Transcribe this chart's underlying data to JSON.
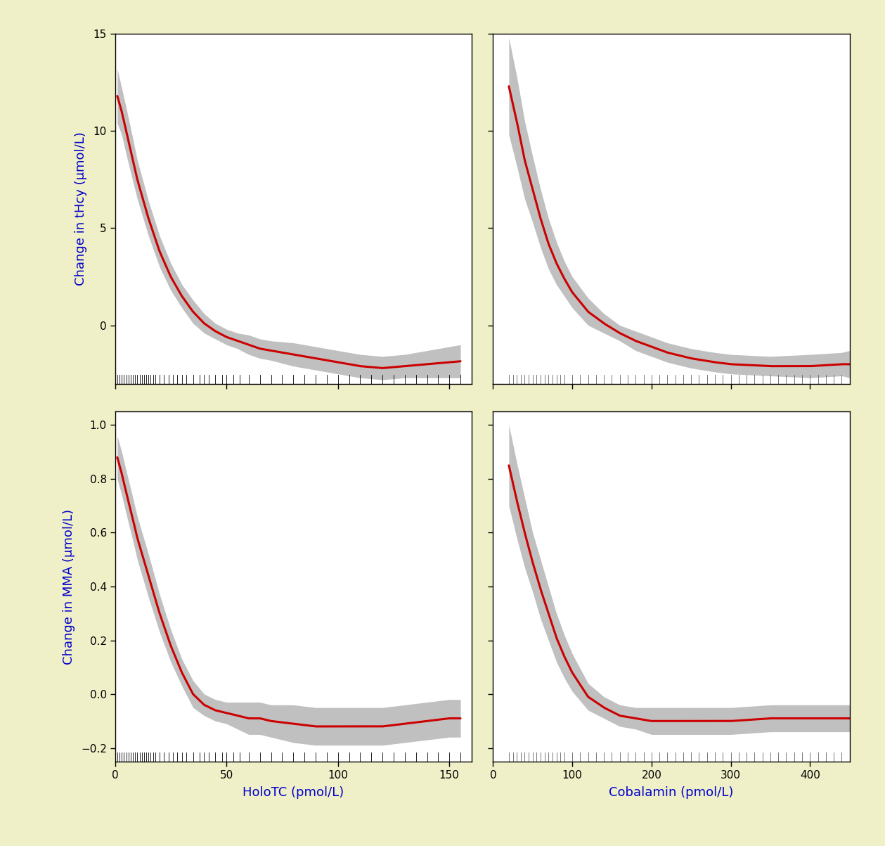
{
  "background_color": "#f0f0c8",
  "panel_bg": "#ffffff",
  "line_color": "#cc0000",
  "band_color": "#c0c0c0",
  "label_color": "#0000cc",
  "tick_color": "#000000",
  "rug_color_left": "#000000",
  "rug_color_right": "#606060",
  "panels": [
    {
      "row": 0,
      "col": 0,
      "xlabel": "",
      "ylabel": "Change in tHcy (μmol/L)",
      "xlim": [
        0,
        160
      ],
      "ylim": [
        -3,
        15
      ],
      "yticks": [
        0,
        5,
        10,
        15
      ],
      "xticks": [
        0,
        50,
        100,
        150
      ],
      "show_xticklabels": false,
      "show_yticklabels": true,
      "curve_x": [
        1,
        3,
        5,
        8,
        10,
        15,
        20,
        25,
        30,
        35,
        40,
        45,
        50,
        55,
        60,
        65,
        70,
        80,
        90,
        100,
        110,
        120,
        130,
        140,
        150,
        155
      ],
      "curve_y": [
        11.8,
        11.0,
        10.0,
        8.5,
        7.5,
        5.5,
        3.8,
        2.5,
        1.5,
        0.7,
        0.1,
        -0.3,
        -0.6,
        -0.8,
        -1.0,
        -1.2,
        -1.3,
        -1.5,
        -1.7,
        -1.9,
        -2.1,
        -2.2,
        -2.1,
        -2.0,
        -1.9,
        -1.85
      ],
      "upper_y": [
        13.2,
        12.2,
        11.2,
        9.6,
        8.5,
        6.4,
        4.6,
        3.2,
        2.1,
        1.3,
        0.6,
        0.1,
        -0.2,
        -0.4,
        -0.5,
        -0.7,
        -0.8,
        -0.9,
        -1.1,
        -1.3,
        -1.5,
        -1.6,
        -1.5,
        -1.3,
        -1.1,
        -1.0
      ],
      "lower_y": [
        10.4,
        9.8,
        8.8,
        7.4,
        6.5,
        4.6,
        3.0,
        1.8,
        0.9,
        0.1,
        -0.4,
        -0.7,
        -1.0,
        -1.2,
        -1.5,
        -1.7,
        -1.8,
        -2.1,
        -2.3,
        -2.5,
        -2.7,
        -2.8,
        -2.7,
        -2.7,
        -2.7,
        -2.7
      ],
      "rug": [
        1,
        2,
        3,
        4,
        5,
        6,
        7,
        8,
        9,
        10,
        11,
        12,
        13,
        14,
        15,
        16,
        17,
        18,
        20,
        22,
        24,
        26,
        28,
        30,
        32,
        35,
        38,
        40,
        42,
        45,
        48,
        50,
        53,
        56,
        60,
        65,
        70,
        75,
        80,
        85,
        90,
        95,
        100,
        105,
        110,
        115,
        120,
        125,
        130,
        135,
        140,
        145,
        150,
        155
      ]
    },
    {
      "row": 0,
      "col": 1,
      "xlabel": "",
      "ylabel": "",
      "xlim": [
        0,
        450
      ],
      "ylim": [
        -3,
        15
      ],
      "yticks": [
        0,
        5,
        10,
        15
      ],
      "xticks": [
        0,
        100,
        200,
        300,
        400
      ],
      "show_xticklabels": false,
      "show_yticklabels": false,
      "curve_x": [
        20,
        30,
        40,
        50,
        60,
        70,
        80,
        90,
        100,
        120,
        140,
        160,
        180,
        200,
        220,
        250,
        280,
        300,
        350,
        400,
        440,
        450
      ],
      "curve_y": [
        12.3,
        10.5,
        8.5,
        7.0,
        5.5,
        4.2,
        3.2,
        2.4,
        1.7,
        0.7,
        0.1,
        -0.4,
        -0.8,
        -1.1,
        -1.4,
        -1.7,
        -1.9,
        -2.0,
        -2.1,
        -2.1,
        -2.0,
        -2.0
      ],
      "upper_y": [
        14.8,
        12.8,
        10.5,
        8.7,
        7.0,
        5.5,
        4.3,
        3.3,
        2.5,
        1.4,
        0.6,
        0.0,
        -0.3,
        -0.6,
        -0.9,
        -1.2,
        -1.4,
        -1.5,
        -1.6,
        -1.5,
        -1.4,
        -1.3
      ],
      "lower_y": [
        9.8,
        8.2,
        6.5,
        5.3,
        4.0,
        2.9,
        2.1,
        1.5,
        0.9,
        0.0,
        -0.4,
        -0.8,
        -1.3,
        -1.6,
        -1.9,
        -2.2,
        -2.4,
        -2.5,
        -2.6,
        -2.7,
        -2.6,
        -2.7
      ],
      "rug": [
        20,
        25,
        30,
        35,
        40,
        45,
        50,
        55,
        60,
        65,
        70,
        75,
        80,
        85,
        90,
        100,
        110,
        120,
        130,
        140,
        150,
        160,
        170,
        180,
        190,
        200,
        210,
        220,
        230,
        240,
        250,
        260,
        270,
        280,
        290,
        300,
        310,
        320,
        330,
        340,
        350,
        360,
        370,
        380,
        390,
        400,
        410,
        420,
        430,
        440,
        450
      ]
    },
    {
      "row": 1,
      "col": 0,
      "xlabel": "HoloTC (pmol/L)",
      "ylabel": "Change in MMA (μmol/L)",
      "xlim": [
        0,
        160
      ],
      "ylim": [
        -0.25,
        1.05
      ],
      "yticks": [
        -0.2,
        0.0,
        0.2,
        0.4,
        0.6,
        0.8,
        1.0
      ],
      "xticks": [
        0,
        50,
        100,
        150
      ],
      "show_xticklabels": true,
      "show_yticklabels": true,
      "curve_x": [
        1,
        3,
        5,
        8,
        10,
        15,
        20,
        25,
        30,
        35,
        40,
        45,
        50,
        55,
        60,
        65,
        70,
        80,
        90,
        100,
        110,
        120,
        130,
        140,
        150,
        155
      ],
      "curve_y": [
        0.88,
        0.82,
        0.75,
        0.65,
        0.58,
        0.44,
        0.3,
        0.18,
        0.08,
        0.0,
        -0.04,
        -0.06,
        -0.07,
        -0.08,
        -0.09,
        -0.09,
        -0.1,
        -0.11,
        -0.12,
        -0.12,
        -0.12,
        -0.12,
        -0.11,
        -0.1,
        -0.09,
        -0.09
      ],
      "upper_y": [
        0.96,
        0.9,
        0.83,
        0.73,
        0.66,
        0.52,
        0.37,
        0.24,
        0.13,
        0.05,
        0.0,
        -0.02,
        -0.03,
        -0.03,
        -0.03,
        -0.03,
        -0.04,
        -0.04,
        -0.05,
        -0.05,
        -0.05,
        -0.05,
        -0.04,
        -0.03,
        -0.02,
        -0.02
      ],
      "lower_y": [
        0.8,
        0.74,
        0.67,
        0.57,
        0.5,
        0.36,
        0.23,
        0.12,
        0.03,
        -0.05,
        -0.08,
        -0.1,
        -0.11,
        -0.13,
        -0.15,
        -0.15,
        -0.16,
        -0.18,
        -0.19,
        -0.19,
        -0.19,
        -0.19,
        -0.18,
        -0.17,
        -0.16,
        -0.16
      ],
      "rug": [
        1,
        2,
        3,
        4,
        5,
        6,
        7,
        8,
        9,
        10,
        11,
        12,
        13,
        14,
        15,
        16,
        17,
        18,
        20,
        22,
        24,
        26,
        28,
        30,
        32,
        35,
        38,
        40,
        42,
        45,
        48,
        50,
        53,
        56,
        60,
        65,
        70,
        75,
        80,
        85,
        90,
        95,
        100,
        105,
        110,
        115,
        120,
        125,
        130,
        135,
        140,
        145,
        150,
        155
      ]
    },
    {
      "row": 1,
      "col": 1,
      "xlabel": "Cobalamin (pmol/L)",
      "ylabel": "",
      "xlim": [
        0,
        450
      ],
      "ylim": [
        -0.25,
        1.05
      ],
      "yticks": [
        -0.2,
        0.0,
        0.2,
        0.4,
        0.6,
        0.8,
        1.0
      ],
      "xticks": [
        0,
        100,
        200,
        300,
        400
      ],
      "show_xticklabels": true,
      "show_yticklabels": false,
      "curve_x": [
        20,
        30,
        40,
        50,
        60,
        70,
        80,
        90,
        100,
        120,
        140,
        160,
        180,
        200,
        220,
        250,
        280,
        300,
        350,
        400,
        440,
        450
      ],
      "curve_y": [
        0.85,
        0.72,
        0.6,
        0.49,
        0.39,
        0.3,
        0.21,
        0.14,
        0.08,
        -0.01,
        -0.05,
        -0.08,
        -0.09,
        -0.1,
        -0.1,
        -0.1,
        -0.1,
        -0.1,
        -0.09,
        -0.09,
        -0.09,
        -0.09
      ],
      "upper_y": [
        1.0,
        0.86,
        0.73,
        0.6,
        0.5,
        0.4,
        0.3,
        0.22,
        0.15,
        0.04,
        -0.01,
        -0.04,
        -0.05,
        -0.05,
        -0.05,
        -0.05,
        -0.05,
        -0.05,
        -0.04,
        -0.04,
        -0.04,
        -0.04
      ],
      "lower_y": [
        0.7,
        0.58,
        0.47,
        0.38,
        0.28,
        0.2,
        0.12,
        0.06,
        0.01,
        -0.06,
        -0.09,
        -0.12,
        -0.13,
        -0.15,
        -0.15,
        -0.15,
        -0.15,
        -0.15,
        -0.14,
        -0.14,
        -0.14,
        -0.14
      ],
      "rug": [
        20,
        25,
        30,
        35,
        40,
        45,
        50,
        55,
        60,
        65,
        70,
        75,
        80,
        85,
        90,
        100,
        110,
        120,
        130,
        140,
        150,
        160,
        170,
        180,
        190,
        200,
        210,
        220,
        230,
        240,
        250,
        260,
        270,
        280,
        290,
        300,
        310,
        320,
        330,
        340,
        350,
        360,
        370,
        380,
        390,
        400,
        410,
        420,
        430,
        440,
        450
      ]
    }
  ]
}
